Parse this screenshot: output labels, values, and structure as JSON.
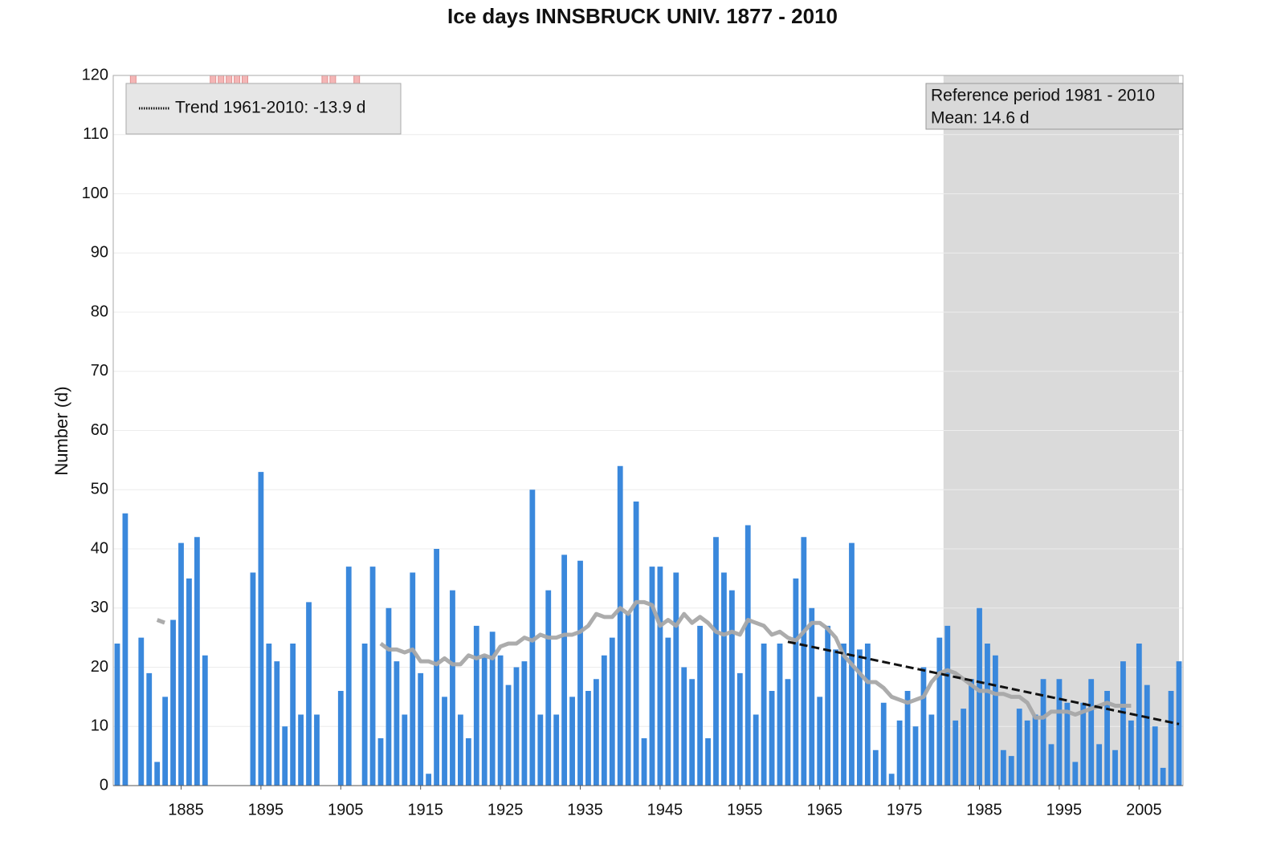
{
  "chart_data": {
    "type": "bar",
    "title": "Ice days INNSBRUCK UNIV. 1877 - 2010",
    "y_label": "Number (d)",
    "x": [
      1877,
      1878,
      1879,
      1880,
      1881,
      1882,
      1883,
      1884,
      1885,
      1886,
      1887,
      1888,
      1889,
      1890,
      1891,
      1892,
      1893,
      1894,
      1895,
      1896,
      1897,
      1898,
      1899,
      1900,
      1901,
      1902,
      1903,
      1904,
      1905,
      1906,
      1907,
      1908,
      1909,
      1910,
      1911,
      1912,
      1913,
      1914,
      1915,
      1916,
      1917,
      1918,
      1919,
      1920,
      1921,
      1922,
      1923,
      1924,
      1925,
      1926,
      1927,
      1928,
      1929,
      1930,
      1931,
      1932,
      1933,
      1934,
      1935,
      1936,
      1937,
      1938,
      1939,
      1940,
      1941,
      1942,
      1943,
      1944,
      1945,
      1946,
      1947,
      1948,
      1949,
      1950,
      1951,
      1952,
      1953,
      1954,
      1955,
      1956,
      1957,
      1958,
      1959,
      1960,
      1961,
      1962,
      1963,
      1964,
      1965,
      1966,
      1967,
      1968,
      1969,
      1970,
      1971,
      1972,
      1973,
      1974,
      1975,
      1976,
      1977,
      1978,
      1979,
      1980,
      1981,
      1982,
      1983,
      1984,
      1985,
      1986,
      1987,
      1988,
      1989,
      1990,
      1991,
      1992,
      1993,
      1994,
      1995,
      1996,
      1997,
      1998,
      1999,
      2000,
      2001,
      2002,
      2003,
      2004,
      2005,
      2006,
      2007,
      2008,
      2009,
      2010
    ],
    "values": [
      24,
      46,
      null,
      25,
      19,
      4,
      15,
      28,
      41,
      35,
      42,
      22,
      null,
      null,
      null,
      null,
      null,
      36,
      53,
      24,
      21,
      10,
      24,
      12,
      31,
      12,
      null,
      null,
      16,
      37,
      null,
      24,
      37,
      8,
      30,
      21,
      12,
      36,
      19,
      2,
      40,
      15,
      33,
      12,
      8,
      27,
      22,
      26,
      22,
      17,
      20,
      21,
      50,
      12,
      33,
      12,
      39,
      15,
      38,
      16,
      18,
      22,
      25,
      54,
      29,
      48,
      8,
      37,
      37,
      25,
      36,
      20,
      18,
      27,
      8,
      42,
      36,
      33,
      19,
      44,
      12,
      24,
      16,
      24,
      18,
      35,
      42,
      30,
      15,
      27,
      23,
      24,
      41,
      23,
      24,
      6,
      14,
      2,
      11,
      16,
      10,
      20,
      12,
      25,
      27,
      11,
      13,
      18,
      30,
      24,
      22,
      6,
      5,
      13,
      11,
      12,
      18,
      7,
      18,
      14,
      4,
      14,
      18,
      7,
      16,
      6,
      21,
      11,
      24,
      17,
      10,
      3,
      16,
      21
    ],
    "color": "#3a88dc",
    "smooth": {
      "color": "#a8a8a8",
      "x": [
        1882,
        1883,
        1884,
        1909,
        1910,
        1911,
        1912,
        1913,
        1914,
        1915,
        1916,
        1917,
        1918,
        1919,
        1920,
        1921,
        1922,
        1923,
        1924,
        1925,
        1926,
        1927,
        1928,
        1929,
        1930,
        1931,
        1932,
        1933,
        1934,
        1935,
        1936,
        1937,
        1938,
        1939,
        1940,
        1941,
        1942,
        1943,
        1944,
        1945,
        1946,
        1947,
        1948,
        1949,
        1950,
        1951,
        1952,
        1953,
        1954,
        1955,
        1956,
        1957,
        1958,
        1959,
        1960,
        1961,
        1962,
        1963,
        1964,
        1965,
        1966,
        1967,
        1968,
        1969,
        1970,
        1971,
        1972,
        1973,
        1974,
        1975,
        1976,
        1977,
        1978,
        1979,
        1980,
        1981,
        1982,
        1983,
        1984,
        1985,
        1986,
        1987,
        1988,
        1989,
        1990,
        1991,
        1992,
        1993,
        1994,
        1995,
        1996,
        1997,
        1998,
        1999,
        2000,
        2001,
        2002,
        2003,
        2004
      ],
      "values": [
        28,
        27.5,
        null,
        null,
        24,
        23,
        23,
        22.5,
        23,
        21,
        21,
        20.5,
        21.5,
        20.5,
        20.5,
        22,
        21.5,
        22,
        21.5,
        23.5,
        24,
        24,
        25,
        24.5,
        25.5,
        25,
        25,
        25.5,
        25.5,
        26,
        27,
        29,
        28.5,
        28.5,
        30,
        29,
        31,
        31,
        30.5,
        27,
        28,
        27,
        29,
        27.5,
        28.5,
        27.5,
        26,
        25.5,
        26,
        25.5,
        28,
        27.5,
        27,
        25.5,
        26,
        25,
        24.5,
        26,
        27.5,
        27.5,
        26.5,
        25,
        22,
        20.5,
        19,
        17.5,
        17.5,
        16.5,
        15,
        14.5,
        14,
        14.5,
        15,
        17.5,
        19,
        19.5,
        19,
        18,
        17,
        16,
        16,
        15.5,
        15.5,
        15,
        15,
        14,
        11.5,
        11.5,
        12.5,
        12.5,
        12.5,
        12,
        12.5,
        13,
        13.5,
        14,
        13.5,
        13.5,
        13.5
      ]
    },
    "trend": {
      "name": "Trend 1961-2010: -13.9 d",
      "color": "#111111",
      "x": [
        1961,
        2010
      ],
      "values": [
        24.3,
        10.4
      ]
    },
    "reference_period": [
      1981,
      2010
    ],
    "reference_text": [
      "Reference period 1981 - 2010",
      "Mean: 14.6 d"
    ],
    "missing_color": "#f4b6b6",
    "xlim": [
      1876.5,
      2010.5
    ],
    "xticks": [
      1885,
      1895,
      1905,
      1915,
      1925,
      1935,
      1945,
      1955,
      1965,
      1975,
      1985,
      1995,
      2005
    ],
    "ylim": [
      0,
      120
    ],
    "yticks": [
      0,
      10,
      20,
      30,
      40,
      50,
      60,
      70,
      80,
      90,
      100,
      110,
      120
    ],
    "grid": true
  }
}
